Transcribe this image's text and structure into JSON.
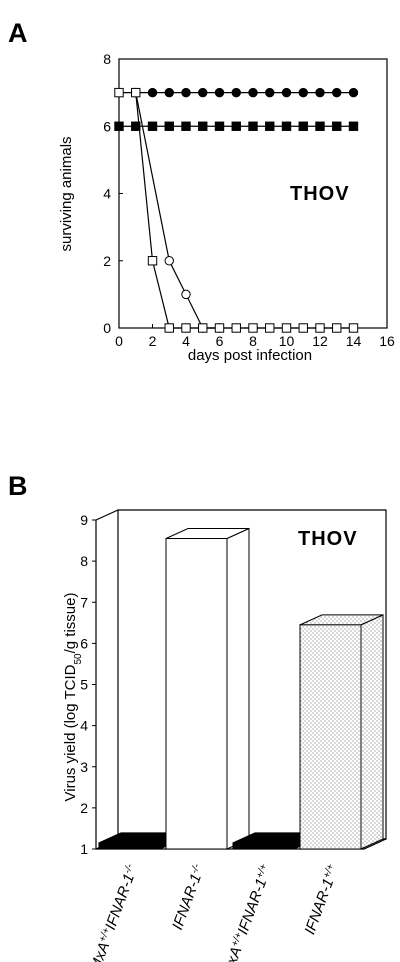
{
  "chart_data": [
    {
      "panel": "A",
      "type": "line",
      "annotation": "THOV",
      "xlabel": "days post infection",
      "ylabel": "surviving animals",
      "xlim": [
        0,
        16
      ],
      "ylim": [
        0,
        8
      ],
      "xticks": [
        "0",
        "2",
        "4",
        "6",
        "8",
        "10",
        "12",
        "14",
        "16"
      ],
      "yticks": [
        "0",
        "2",
        "4",
        "6",
        "8"
      ],
      "series": [
        {
          "marker": "filled-circle",
          "x": [
            1,
            2,
            3,
            4,
            5,
            6,
            7,
            8,
            9,
            10,
            11,
            12,
            13,
            14
          ],
          "y": [
            7,
            7,
            7,
            7,
            7,
            7,
            7,
            7,
            7,
            7,
            7,
            7,
            7,
            7
          ]
        },
        {
          "marker": "filled-square",
          "x": [
            0,
            1,
            2,
            3,
            4,
            5,
            6,
            7,
            8,
            9,
            10,
            11,
            12,
            13,
            14
          ],
          "y": [
            6,
            6,
            6,
            6,
            6,
            6,
            6,
            6,
            6,
            6,
            6,
            6,
            6,
            6,
            6
          ]
        },
        {
          "marker": "open-circle",
          "x": [
            1,
            3,
            4,
            5,
            6
          ],
          "y": [
            7,
            2,
            1,
            0,
            0
          ]
        },
        {
          "marker": "open-square",
          "x": [
            0,
            1,
            2,
            3,
            4,
            5,
            6,
            7,
            8,
            9,
            10,
            11,
            12,
            13,
            14
          ],
          "y": [
            7,
            7,
            2,
            0,
            0,
            0,
            0,
            0,
            0,
            0,
            0,
            0,
            0,
            0,
            0
          ]
        }
      ]
    },
    {
      "panel": "B",
      "type": "bar",
      "annotation": "THOV",
      "ylabel_prefix": "Virus yield (log TCID",
      "ylabel_sub": "50",
      "ylabel_suffix": "/g tissue)",
      "ylim": [
        1,
        9
      ],
      "yticks": [
        "1",
        "2",
        "3",
        "4",
        "5",
        "6",
        "7",
        "8",
        "9"
      ],
      "categories": [
        {
          "base": "MxA",
          "sup1": "+/+",
          "gene": "IFNAR-1",
          "sup2": "-/-",
          "fill": "#000000",
          "value": 1.15
        },
        {
          "base": "",
          "sup1": "",
          "gene": "IFNAR-1",
          "sup2": "-/-",
          "fill": "#ffffff",
          "value": 8.55
        },
        {
          "base": "MxA",
          "sup1": "+/+",
          "gene": "IFNAR-1",
          "sup2": "+/+",
          "fill": "#000000",
          "value": 1.15
        },
        {
          "base": "",
          "sup1": "",
          "gene": "IFNAR-1",
          "sup2": "+/+",
          "fill": "stipple",
          "value": 6.45
        }
      ]
    }
  ],
  "panels": {
    "a": {
      "letter": "A"
    },
    "b": {
      "letter": "B"
    }
  }
}
